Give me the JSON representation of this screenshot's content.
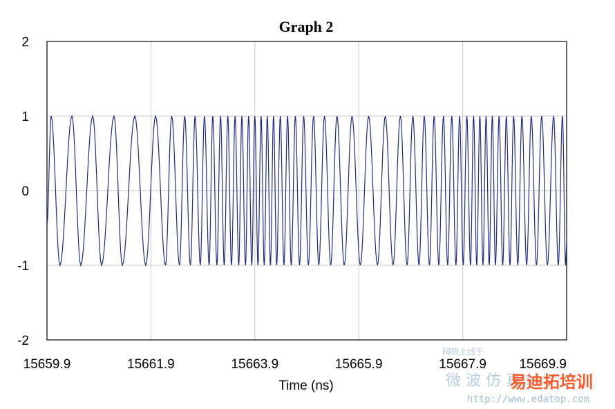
{
  "chart_data": {
    "type": "line",
    "title": "Graph 2",
    "xlabel": "Time (ns)",
    "ylabel": "",
    "xlim": [
      15659.9,
      15669.9
    ],
    "ylim": [
      -2,
      2
    ],
    "x_ticks": [
      "15659.9",
      "15661.9",
      "15663.9",
      "15665.9",
      "15667.9",
      "15669.9"
    ],
    "y_ticks": [
      "2",
      "1",
      "0",
      "-1",
      "-2"
    ],
    "grid": true,
    "series": [
      {
        "color": "#1f2a8c",
        "amplitude": 1.0,
        "start_value": -0.45,
        "end_value": -0.7,
        "peak_times_ns": [
          15659.98,
          15660.38,
          15660.78,
          15661.19,
          15661.59,
          15661.99,
          15662.3,
          15662.55,
          15662.75,
          15662.93,
          15663.09,
          15663.24,
          15663.38,
          15663.52,
          15663.65,
          15663.78,
          15663.9,
          15664.02,
          15664.14,
          15664.26,
          15664.39,
          15664.53,
          15664.68,
          15664.84,
          15665.03,
          15665.24,
          15665.48,
          15665.77,
          15666.09,
          15666.41,
          15666.7,
          15666.94,
          15667.16,
          15667.35,
          15667.53,
          15667.69,
          15667.84,
          15667.98,
          15668.11,
          15668.23,
          15668.35,
          15668.47,
          15668.6,
          15668.74,
          15668.88,
          15669.04,
          15669.22,
          15669.42,
          15669.65,
          15669.82
        ],
        "trough_times_ns": [
          15660.15,
          15660.55,
          15660.95,
          15661.35,
          15661.8,
          15662.18,
          15662.45,
          15662.66,
          15662.85,
          15663.02,
          15663.17,
          15663.31,
          15663.45,
          15663.59,
          15663.72,
          15663.84,
          15663.96,
          15664.08,
          15664.2,
          15664.32,
          15664.46,
          15664.6,
          15664.76,
          15664.93,
          15665.13,
          15665.36,
          15665.62,
          15665.93,
          15666.26,
          15666.56,
          15666.83,
          15667.06,
          15667.26,
          15667.44,
          15667.61,
          15667.77,
          15667.91,
          15668.05,
          15668.17,
          15668.29,
          15668.41,
          15668.53,
          15668.67,
          15668.81,
          15668.96,
          15669.13,
          15669.32,
          15669.53,
          15669.74,
          15669.88
        ]
      }
    ]
  },
  "watermark": {
    "line1": "网商上线于",
    "line2": "微 波 仿 真 站",
    "brand": "易迪拓培训",
    "url": "http://www.edatop.com"
  }
}
